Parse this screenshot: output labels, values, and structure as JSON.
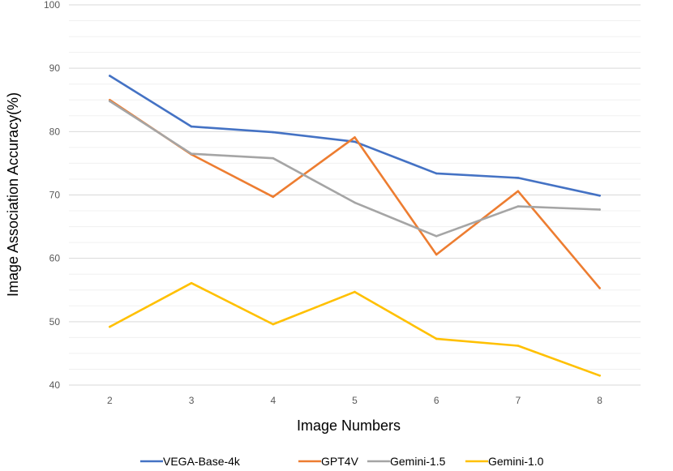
{
  "chart_data": {
    "type": "line",
    "title": "",
    "xlabel": "Image Numbers",
    "ylabel": "Image Association Accuracy(%)",
    "x": [
      "2",
      "3",
      "4",
      "5",
      "6",
      "7",
      "8"
    ],
    "ylim": [
      40,
      100
    ],
    "yticks": [
      "40",
      "50",
      "60",
      "70",
      "80",
      "90",
      "100"
    ],
    "grid": true,
    "legend_position": "bottom",
    "series": [
      {
        "name": "VEGA-Base-4k",
        "color": "#4472C4",
        "values": [
          88.8,
          80.8,
          79.9,
          78.4,
          73.4,
          72.7,
          69.9
        ]
      },
      {
        "name": "GPT4V",
        "color": "#ED7D31",
        "values": [
          85.0,
          76.4,
          69.7,
          79.1,
          60.6,
          70.6,
          55.3
        ]
      },
      {
        "name": "Gemini-1.5",
        "color": "#A5A5A5",
        "values": [
          84.8,
          76.5,
          75.8,
          68.8,
          63.5,
          68.2,
          67.7
        ]
      },
      {
        "name": "Gemini-1.0",
        "color": "#FFC000",
        "values": [
          49.2,
          56.1,
          49.6,
          54.7,
          47.3,
          46.2,
          41.5
        ]
      }
    ]
  }
}
